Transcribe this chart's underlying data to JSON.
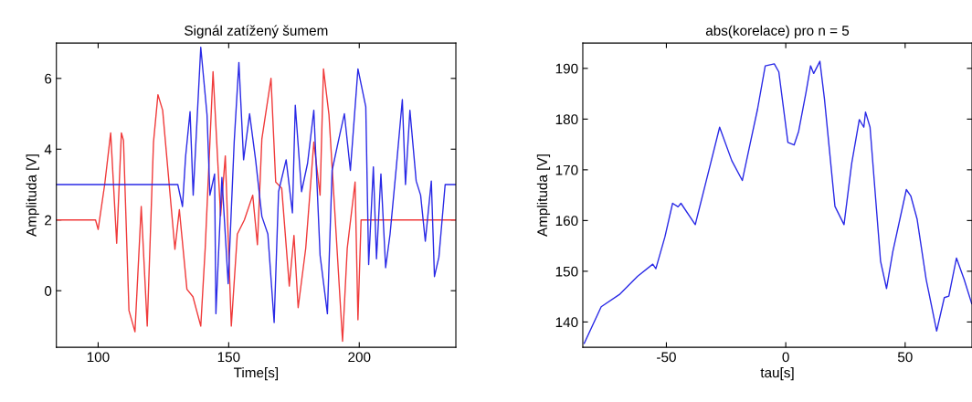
{
  "chart_data": [
    {
      "type": "line",
      "title": "Signál zatížený šumem",
      "xlabel": "Time[s]",
      "ylabel": "Amplituda [V]",
      "xlim": [
        84,
        237
      ],
      "ylim": [
        -1.6,
        7
      ],
      "xticks": [
        100,
        150,
        200
      ],
      "yticks": [
        0,
        2,
        4,
        6
      ],
      "series": [
        {
          "color": "#f03a3a",
          "x": [
            84,
            99,
            100,
            102.5,
            104.8,
            107.1,
            108.9,
            109.7,
            111.8,
            114.1,
            116.5,
            118.8,
            121.2,
            122.9,
            124.7,
            129.4,
            131.1,
            134,
            136.3,
            139.3,
            141,
            144,
            146.9,
            148.7,
            151,
            153.3,
            156,
            159.2,
            161,
            162.7,
            166.2,
            168,
            170.3,
            173.2,
            175,
            176.6,
            179.5,
            182.6,
            185,
            186.3,
            188.4,
            190.8,
            193.6,
            195.4,
            198.4,
            199.5,
            200.7,
            237
          ],
          "values": [
            2,
            2,
            1.73,
            3.0,
            4.46,
            1.34,
            4.46,
            4.25,
            -0.56,
            -1.16,
            2.38,
            -1.0,
            4.2,
            5.54,
            5.1,
            1.17,
            2.29,
            0.04,
            -0.17,
            -1.0,
            1.2,
            6.19,
            2.12,
            3.81,
            -1.0,
            1.6,
            2.0,
            2.7,
            1.3,
            4.29,
            6.0,
            3.07,
            2.9,
            0.13,
            1.56,
            -0.48,
            1.2,
            4.2,
            2.7,
            6.27,
            4.97,
            2.03,
            -1.43,
            1.2,
            3.07,
            -0.82,
            2.0,
            2.0
          ]
        },
        {
          "color": "#2a2ae6",
          "x": [
            84,
            130.5,
            132.3,
            133.5,
            135.2,
            136.4,
            139.3,
            141.7,
            142.8,
            144.6,
            145.1,
            147.4,
            149.8,
            152.1,
            153.9,
            155.7,
            158,
            160.3,
            162.7,
            165,
            167.4,
            169.1,
            172,
            174.4,
            175.5,
            177.9,
            180.2,
            182.6,
            185,
            187.8,
            189.6,
            192.5,
            194.3,
            196.6,
            199.5,
            202.5,
            203.6,
            205.4,
            206.6,
            208.3,
            210.1,
            211.8,
            214.2,
            216.5,
            217.7,
            219.4,
            221.8,
            223.5,
            225.3,
            227.6,
            228.8,
            230.5,
            232.9,
            237
          ],
          "values": [
            3,
            3,
            2.38,
            3.8,
            5.06,
            2.7,
            6.88,
            4.97,
            2.7,
            3.3,
            -0.65,
            3.2,
            0.2,
            4.2,
            6.45,
            3.7,
            5.0,
            3.7,
            2.1,
            1.6,
            -0.9,
            2.8,
            3.7,
            2.2,
            5.24,
            2.8,
            3.6,
            5.1,
            1.0,
            -0.65,
            3.4,
            4.4,
            5.0,
            3.4,
            6.27,
            5.2,
            0.74,
            3.5,
            0.9,
            3.3,
            0.65,
            1.6,
            3.5,
            5.4,
            3.0,
            5.1,
            3.1,
            2.7,
            1.4,
            3.1,
            0.4,
            0.95,
            3.0,
            3.0
          ]
        }
      ]
    },
    {
      "type": "line",
      "title": "abs(korelace) pro n = 5",
      "xlabel": "tau[s]",
      "ylabel": "Amplituda [V]",
      "xlim": [
        -85,
        78
      ],
      "ylim": [
        135,
        195
      ],
      "xticks": [
        -50,
        0,
        50
      ],
      "yticks": [
        140,
        150,
        160,
        170,
        180,
        190
      ],
      "series": [
        {
          "color": "#2a2ae6",
          "x": [
            -84.4,
            -77.3,
            -69.7,
            -62.1,
            -55.7,
            -54.4,
            -50.6,
            -47.4,
            -45.1,
            -43.9,
            -37.9,
            -31.5,
            -27.7,
            -22.6,
            -18.2,
            -14.4,
            -11.8,
            -8.6,
            -4.8,
            -2.9,
            0.9,
            3.5,
            5.4,
            8.5,
            10.4,
            11.7,
            14.3,
            16.2,
            20.6,
            24.4,
            27.6,
            30.8,
            32.7,
            33.4,
            35.3,
            39.7,
            42.2,
            44.8,
            50.5,
            52.4,
            55,
            58.8,
            63.2,
            66.4,
            68.3,
            71.5,
            74.7,
            77.9
          ],
          "values": [
            135.8,
            143,
            145.4,
            149,
            151.4,
            150.5,
            156.8,
            163.4,
            162.7,
            163.4,
            159.2,
            171.2,
            178.4,
            171.8,
            167.9,
            176.3,
            182,
            190.5,
            190.9,
            189.3,
            175.4,
            174.9,
            177.6,
            185.3,
            190.5,
            189,
            191.4,
            184,
            162.8,
            159.2,
            171.2,
            179.9,
            178.4,
            181.4,
            178.4,
            152,
            146.6,
            153.8,
            166.1,
            164.8,
            160.3,
            148.4,
            138.2,
            144.8,
            145.1,
            152.6,
            148.4,
            143.6
          ]
        }
      ]
    }
  ]
}
